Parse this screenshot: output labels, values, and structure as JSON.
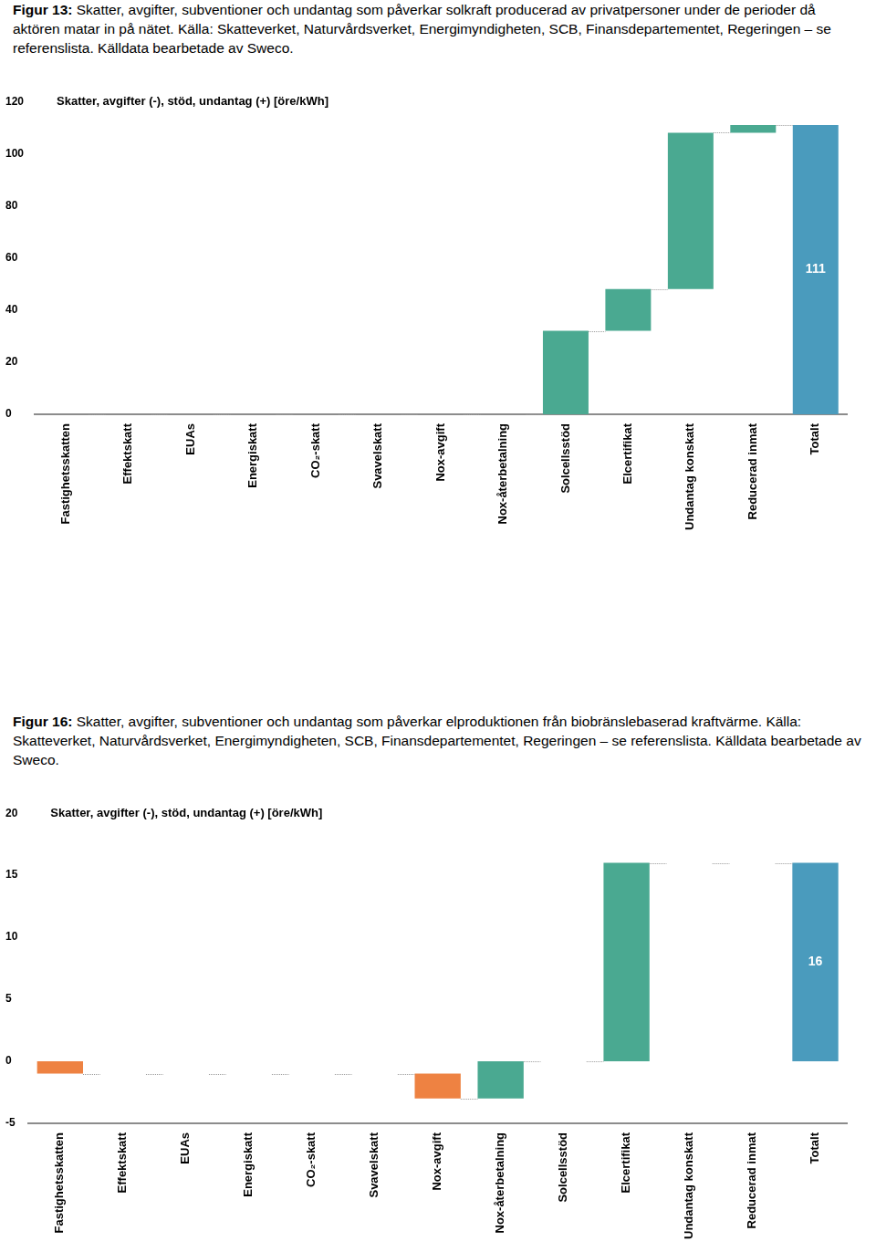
{
  "chart_data": [
    {
      "type": "waterfall",
      "title": "Figur 13: Skatter, avgifter, subventioner och undantag som påverkar solkraft producerad av privatpersoner under de perioder då aktören matar in på nätet. Källa: Skatteverket, Naturvårdsverket, Energimyndigheten, SCB, Finansdepartementet, Regeringen – se referenslista. Källdata bearbetade av Sweco.",
      "y_label": "Skatter, avgifter (-), stöd, undantag (+) [öre/kWh]",
      "categories": [
        "Fastighetsskatten",
        "Effektskatt",
        "EUAs",
        "Energiskatt",
        "CO₂-skatt",
        "Svavelskatt",
        "Nox-avgift",
        "Nox-återbetalning",
        "Solcellsstöd",
        "Elcertifikat",
        "Undantag konskatt",
        "Reducerad inmat",
        "Totalt"
      ],
      "values": [
        0,
        0,
        0,
        0,
        0,
        0,
        0,
        0,
        32,
        16,
        60,
        3,
        111
      ],
      "colors": [
        "#4aa991",
        "#4aa991",
        "#4aa991",
        "#4aa991",
        "#4aa991",
        "#4aa991",
        "#4aa991",
        "#4aa991",
        "#4aa991",
        "#4aa991",
        "#4aa991",
        "#4aa991",
        "#4a9bbd"
      ],
      "value_labels": [
        null,
        null,
        null,
        null,
        null,
        null,
        null,
        null,
        null,
        null,
        null,
        null,
        "111"
      ],
      "ylim": [
        0,
        120
      ],
      "yticks": [
        0,
        20,
        40,
        60,
        80,
        100,
        120
      ],
      "grid": false
    },
    {
      "type": "waterfall",
      "title": "Figur 16: Skatter, avgifter, subventioner och undantag som påverkar elproduktionen från biobränslebaserad kraftvärme. Källa: Skatteverket, Naturvårdsverket, Energimyndigheten, SCB, Finansdepartementet, Regeringen – se referenslista. Källdata bearbetade av Sweco.",
      "y_label": "Skatter, avgifter (-), stöd, undantag (+) [öre/kWh]",
      "categories": [
        "Fastighetsskatten",
        "Effektskatt",
        "EUAs",
        "Energiskatt",
        "CO₂-skatt",
        "Svavelskatt",
        "Nox-avgift",
        "Nox-återbetalning",
        "Solcellsstöd",
        "Elcertifikat",
        "Undantag konskatt",
        "Reducerad inmat",
        "Totalt"
      ],
      "values": [
        -1,
        0,
        0,
        0,
        0,
        0,
        -2,
        3,
        0,
        16,
        0,
        0,
        16
      ],
      "colors": [
        "#ee8242",
        "#4aa991",
        "#4aa991",
        "#4aa991",
        "#4aa991",
        "#4aa991",
        "#ee8242",
        "#4aa991",
        "#4aa991",
        "#4aa991",
        "#4aa991",
        "#4aa991",
        "#4a9bbd"
      ],
      "value_labels": [
        null,
        null,
        null,
        null,
        null,
        null,
        null,
        null,
        null,
        null,
        null,
        null,
        "16"
      ],
      "ylim": [
        -5,
        20
      ],
      "yticks": [
        -5,
        0,
        5,
        10,
        15,
        20
      ],
      "grid": false
    }
  ]
}
